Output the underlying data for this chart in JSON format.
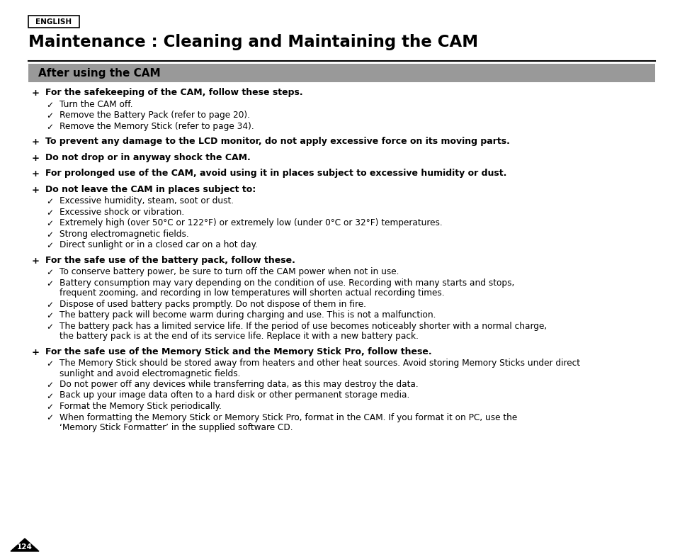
{
  "bg_color": "#ffffff",
  "english_label": "ENGLISH",
  "title": "Maintenance : Cleaning and Maintaining the CAM",
  "section_header": "After using the CAM",
  "section_header_bg": "#999999",
  "page_number": "124",
  "content_blocks": [
    {
      "text": "For the safekeeping of the CAM, follow these steps.",
      "subitems": [
        "Turn the CAM off.",
        "Remove the Battery Pack (refer to page 20).",
        "Remove the Memory Stick (refer to page 34)."
      ]
    },
    {
      "text": "To prevent any damage to the LCD monitor, do not apply excessive force on its moving parts.",
      "subitems": []
    },
    {
      "text": "Do not drop or in anyway shock the CAM.",
      "subitems": []
    },
    {
      "text": "For prolonged use of the CAM, avoid using it in places subject to excessive humidity or dust.",
      "subitems": []
    },
    {
      "text": "Do not leave the CAM in places subject to:",
      "subitems": [
        "Excessive humidity, steam, soot or dust.",
        "Excessive shock or vibration.",
        "Extremely high (over 50°C or 122°F) or extremely low (under 0°C or 32°F) temperatures.",
        "Strong electromagnetic fields.",
        "Direct sunlight or in a closed car on a hot day."
      ]
    },
    {
      "text": "For the safe use of the battery pack, follow these.",
      "subitems": [
        "To conserve battery power, be sure to turn off the CAM power when not in use.",
        "Battery consumption may vary depending on the condition of use. Recording with many starts and stops,\nfrequent zooming, and recording in low temperatures will shorten actual recording times.",
        "Dispose of used battery packs promptly. Do not dispose of them in fire.",
        "The battery pack will become warm during charging and use. This is not a malfunction.",
        "The battery pack has a limited service life. If the period of use becomes noticeably shorter with a normal charge,\nthe battery pack is at the end of its service life. Replace it with a new battery pack."
      ]
    },
    {
      "text": "For the safe use of the Memory Stick and the Memory Stick Pro, follow these.",
      "subitems": [
        "The Memory Stick should be stored away from heaters and other heat sources. Avoid storing Memory Sticks under direct\nsunlight and avoid electromagnetic fields.",
        "Do not power off any devices while transferring data, as this may destroy the data.",
        "Back up your image data often to a hard disk or other permanent storage media.",
        "Format the Memory Stick periodically.",
        "When formatting the Memory Stick or Memory Stick Pro, format in the CAM. If you format it on PC, use the\n‘Memory Stick Formatter’ in the supplied software CD."
      ]
    }
  ]
}
